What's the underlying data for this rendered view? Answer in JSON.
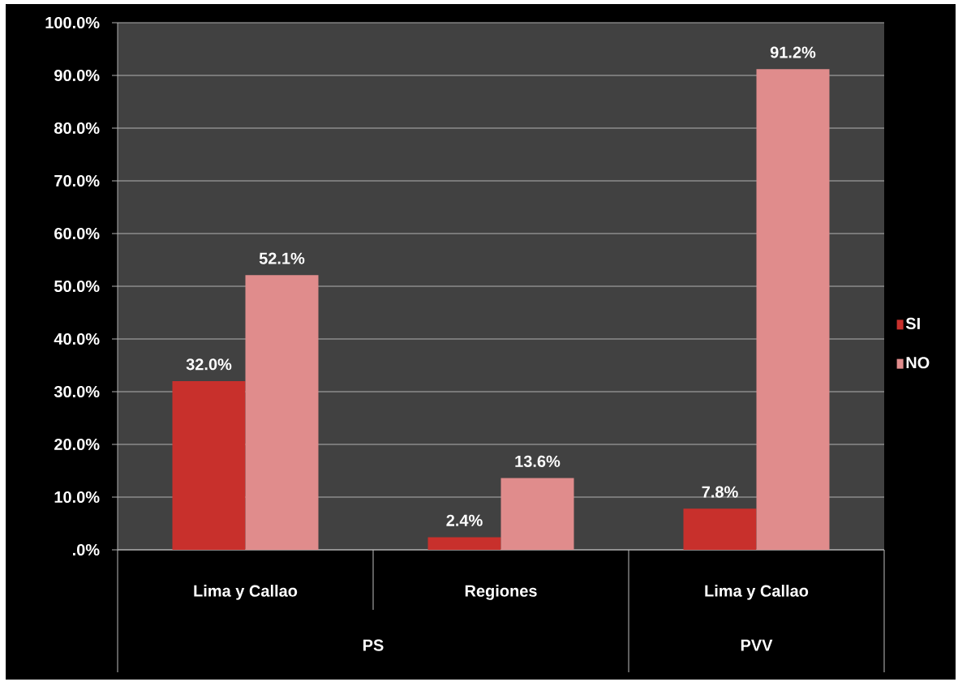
{
  "chart_data": {
    "type": "bar",
    "categories": [
      "Lima y Callao",
      "Regiones",
      "Lima y Callao"
    ],
    "series": [
      {
        "name": "SI",
        "color": "#c8302c",
        "values": [
          32.0,
          2.4,
          7.8
        ],
        "value_labels": [
          "32.0%",
          "2.4%",
          "7.8%"
        ]
      },
      {
        "name": "NO",
        "color": "#e08c8c",
        "values": [
          52.1,
          13.6,
          91.2
        ],
        "value_labels": [
          "52.1%",
          "13.6%",
          "91.2%"
        ]
      }
    ],
    "ylim": [
      0,
      100
    ],
    "yticks": [
      {
        "value": 0,
        "label": ".0%"
      },
      {
        "value": 10,
        "label": "10.0%"
      },
      {
        "value": 20,
        "label": "20.0%"
      },
      {
        "value": 30,
        "label": "30.0%"
      },
      {
        "value": 40,
        "label": "40.0%"
      },
      {
        "value": 50,
        "label": "50.0%"
      },
      {
        "value": 60,
        "label": "60.0%"
      },
      {
        "value": 70,
        "label": "70.0%"
      },
      {
        "value": 80,
        "label": "80.0%"
      },
      {
        "value": 90,
        "label": "90.0%"
      },
      {
        "value": 100,
        "label": "100.0%"
      }
    ],
    "grid": "y",
    "legend": "right",
    "annotations": [
      "PS",
      "PVV"
    ]
  }
}
